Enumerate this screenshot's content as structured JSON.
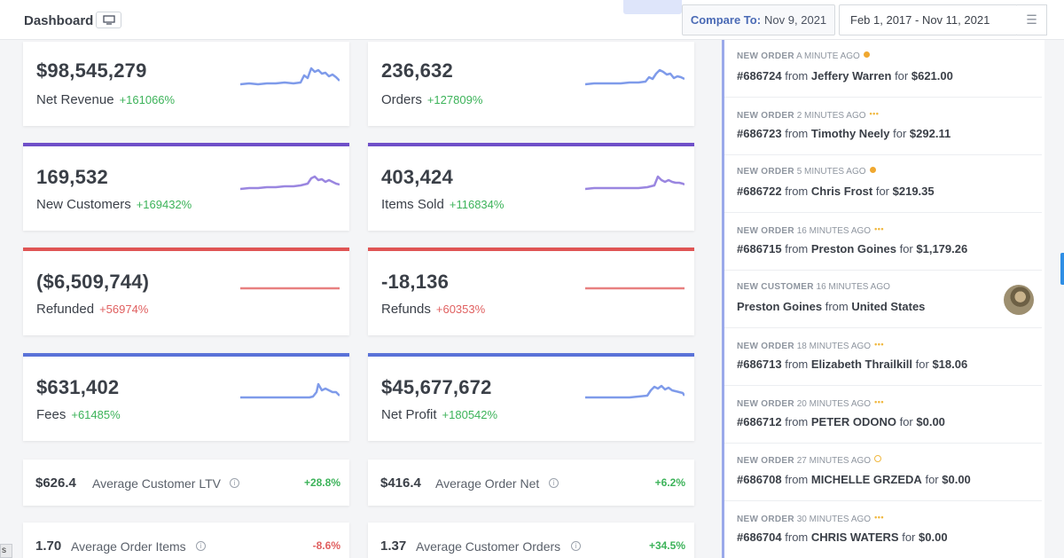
{
  "header": {
    "title": "Dashboard",
    "compare_label": "Compare To:",
    "compare_date": "Nov 9, 2021",
    "date_range": "Feb 1, 2017 - Nov 11, 2021"
  },
  "colors": {
    "purple": "#6f4fc9",
    "red": "#e05555",
    "blue": "#5a72d8",
    "spark_blue": "#7f9bea",
    "spark_purple": "#9a86e0",
    "spark_red": "#e88080",
    "positive": "#3db35a",
    "negative": "#e06060"
  },
  "metrics": [
    {
      "value": "$98,545,279",
      "label": "Net Revenue",
      "change": "+161066%"
    },
    {
      "value": "236,632",
      "label": "Orders",
      "change": "+127809%"
    },
    {
      "value": "169,532",
      "label": "New Customers",
      "change": "+169432%"
    },
    {
      "value": "403,424",
      "label": "Items Sold",
      "change": "+116834%"
    },
    {
      "value": "($6,509,744)",
      "label": "Refunded",
      "change": "+56974%"
    },
    {
      "value": "-18,136",
      "label": "Refunds",
      "change": "+60353%"
    },
    {
      "value": "$631,402",
      "label": "Fees",
      "change": "+61485%"
    },
    {
      "value": "$45,677,672",
      "label": "Net Profit",
      "change": "+180542%"
    }
  ],
  "stats": [
    {
      "value": "$626.4",
      "label": "Average Customer LTV",
      "change": "+28.8%"
    },
    {
      "value": "$416.4",
      "label": "Average Order Net",
      "change": "+6.2%"
    },
    {
      "value": "1.70",
      "label": "Average Order Items",
      "change": "-8.6%"
    },
    {
      "value": "1.37",
      "label": "Average Customer Orders",
      "change": "+34.5%"
    }
  ],
  "feed": [
    {
      "kind": "NEW ORDER",
      "time": "A MINUTE AGO",
      "order": "#686724",
      "from_word": "from",
      "name": "Jeffery Warren",
      "for_word": "for",
      "amount": "$621.00",
      "status_icon": "clock-dot-icon"
    },
    {
      "kind": "NEW ORDER",
      "time": "2 MINUTES AGO",
      "order": "#686723",
      "from_word": "from",
      "name": "Timothy Neely",
      "for_word": "for",
      "amount": "$292.11",
      "status_icon": "ellipsis-icon"
    },
    {
      "kind": "NEW ORDER",
      "time": "5 MINUTES AGO",
      "order": "#686722",
      "from_word": "from",
      "name": "Chris Frost",
      "for_word": "for",
      "amount": "$219.35",
      "status_icon": "clock-dot-icon"
    },
    {
      "kind": "NEW ORDER",
      "time": "16 MINUTES AGO",
      "order": "#686715",
      "from_word": "from",
      "name": "Preston Goines",
      "for_word": "for",
      "amount": "$1,179.26",
      "status_icon": "ellipsis-icon"
    },
    {
      "kind": "NEW CUSTOMER",
      "time": "16 MINUTES AGO",
      "name": "Preston Goines",
      "from_word": "from",
      "country": "United States"
    },
    {
      "kind": "NEW ORDER",
      "time": "18 MINUTES AGO",
      "order": "#686713",
      "from_word": "from",
      "name": "Elizabeth Thrailkill",
      "for_word": "for",
      "amount": "$18.06",
      "status_icon": "ellipsis-icon"
    },
    {
      "kind": "NEW ORDER",
      "time": "20 MINUTES AGO",
      "order": "#686712",
      "from_word": "from",
      "name": "PETER ODONO",
      "for_word": "for",
      "amount": "$0.00",
      "status_icon": "ellipsis-icon"
    },
    {
      "kind": "NEW ORDER",
      "time": "27 MINUTES AGO",
      "order": "#686708",
      "from_word": "from",
      "name": "MICHELLE GRZEDA",
      "for_word": "for",
      "amount": "$0.00",
      "status_icon": "dollar-dot-icon"
    },
    {
      "kind": "NEW ORDER",
      "time": "30 MINUTES AGO",
      "order": "#686704",
      "from_word": "from",
      "name": "CHRIS WATERS",
      "for_word": "for",
      "amount": "$0.00",
      "status_icon": "ellipsis-icon"
    }
  ],
  "corner_tab": "s"
}
